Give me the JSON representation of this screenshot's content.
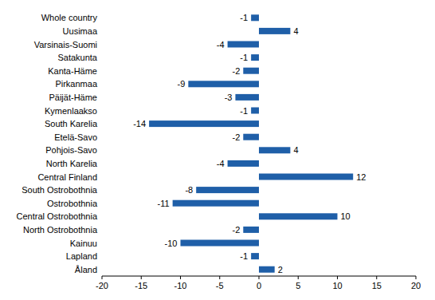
{
  "chart_data": {
    "type": "bar",
    "orientation": "horizontal",
    "categories": [
      "Whole country",
      "Uusimaa",
      "Varsinais-Suomi",
      "Satakunta",
      "Kanta-Häme",
      "Pirkanmaa",
      "Päijät-Häme",
      "Kymenlaakso",
      "South Karelia",
      "Etelä-Savo",
      "Pohjois-Savo",
      "North Karelia",
      "Central Finland",
      "South Ostrobothnia",
      "Ostrobothnia",
      "Central Ostrobothnia",
      "North Ostrobothnia",
      "Kainuu",
      "Lapland",
      "Åland"
    ],
    "values": [
      -1,
      4,
      -4,
      -1,
      -2,
      -9,
      -3,
      -1,
      -14,
      -2,
      4,
      -4,
      12,
      -8,
      -11,
      10,
      -2,
      -10,
      -1,
      2
    ],
    "color": "#1f5fa8",
    "xlim": [
      -20,
      20
    ],
    "xticks": [
      -20,
      -15,
      -10,
      -5,
      0,
      5,
      10,
      15,
      20
    ],
    "grid": false,
    "data_labels": true
  }
}
